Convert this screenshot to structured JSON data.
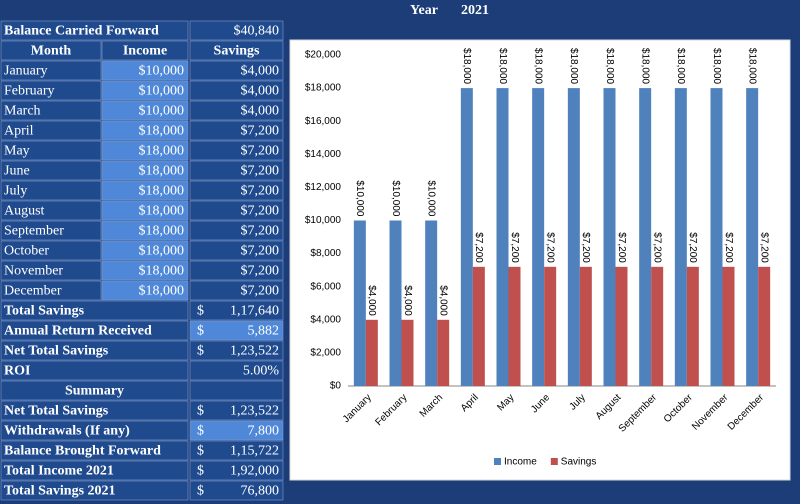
{
  "header": {
    "year_label": "Year",
    "year": "2021"
  },
  "balance_carried_forward": {
    "label": "Balance Carried Forward",
    "value": "$40,840"
  },
  "table": {
    "columns": [
      "Month",
      "Income",
      "Savings"
    ],
    "rows": [
      [
        "January",
        "$10,000",
        "$4,000"
      ],
      [
        "February",
        "$10,000",
        "$4,000"
      ],
      [
        "March",
        "$10,000",
        "$4,000"
      ],
      [
        "April",
        "$18,000",
        "$7,200"
      ],
      [
        "May",
        "$18,000",
        "$7,200"
      ],
      [
        "June",
        "$18,000",
        "$7,200"
      ],
      [
        "July",
        "$18,000",
        "$7,200"
      ],
      [
        "August",
        "$18,000",
        "$7,200"
      ],
      [
        "September",
        "$18,000",
        "$7,200"
      ],
      [
        "October",
        "$18,000",
        "$7,200"
      ],
      [
        "November",
        "$18,000",
        "$7,200"
      ],
      [
        "December",
        "$18,000",
        "$7,200"
      ]
    ]
  },
  "totals": [
    {
      "label": "Total Savings",
      "currency": "$",
      "value": "1,17,640"
    },
    {
      "label": "Annual Return Received",
      "currency": "$",
      "value": "5,882",
      "highlight": true
    },
    {
      "label": "Net Total Savings",
      "currency": "$",
      "value": "1,23,522"
    },
    {
      "label": "ROI",
      "value": "5.00%"
    }
  ],
  "summary": {
    "title": "Summary",
    "rows": [
      {
        "label": "Net Total Savings",
        "currency": "$",
        "value": "1,23,522"
      },
      {
        "label": "Withdrawals (If any)",
        "currency": "$",
        "value": "7,800",
        "highlight": true
      },
      {
        "label": "Balance Brought Forward",
        "currency": "$",
        "value": "1,15,722"
      },
      {
        "label": "Total Income  2021",
        "currency": "$",
        "value": "1,92,000"
      },
      {
        "label": "Total Savings  2021",
        "currency": "$",
        "value": "76,800"
      }
    ]
  },
  "chart_data": {
    "type": "bar",
    "categories": [
      "January",
      "February",
      "March",
      "April",
      "May",
      "June",
      "July",
      "August",
      "September",
      "October",
      "November",
      "December"
    ],
    "series": [
      {
        "name": "Income",
        "color": "#4f81bd",
        "values": [
          10000,
          10000,
          10000,
          18000,
          18000,
          18000,
          18000,
          18000,
          18000,
          18000,
          18000,
          18000
        ],
        "value_labels": [
          "$10,000",
          "$10,000",
          "$10,000",
          "$18,000",
          "$18,000",
          "$18,000",
          "$18,000",
          "$18,000",
          "$18,000",
          "$18,000",
          "$18,000",
          "$18,000"
        ]
      },
      {
        "name": "Savings",
        "color": "#c0504d",
        "values": [
          4000,
          4000,
          4000,
          7200,
          7200,
          7200,
          7200,
          7200,
          7200,
          7200,
          7200,
          7200
        ],
        "value_labels": [
          "$4,000",
          "$4,000",
          "$4,000",
          "$7,200",
          "$7,200",
          "$7,200",
          "$7,200",
          "$7,200",
          "$7,200",
          "$7,200",
          "$7,200",
          "$7,200"
        ]
      }
    ],
    "ylim": [
      0,
      20000
    ],
    "yticks": [
      {
        "value": 0,
        "label": "$0"
      },
      {
        "value": 2000,
        "label": "$2,000"
      },
      {
        "value": 4000,
        "label": "$4,000"
      },
      {
        "value": 6000,
        "label": "$6,000"
      },
      {
        "value": 8000,
        "label": "$8,000"
      },
      {
        "value": 10000,
        "label": "$10,000"
      },
      {
        "value": 12000,
        "label": "$12,000"
      },
      {
        "value": 14000,
        "label": "$14,000"
      },
      {
        "value": 16000,
        "label": "$16,000"
      },
      {
        "value": 18000,
        "label": "$18,000"
      },
      {
        "value": 20000,
        "label": "$20,000"
      }
    ],
    "grid": false,
    "legend": "bottom"
  }
}
